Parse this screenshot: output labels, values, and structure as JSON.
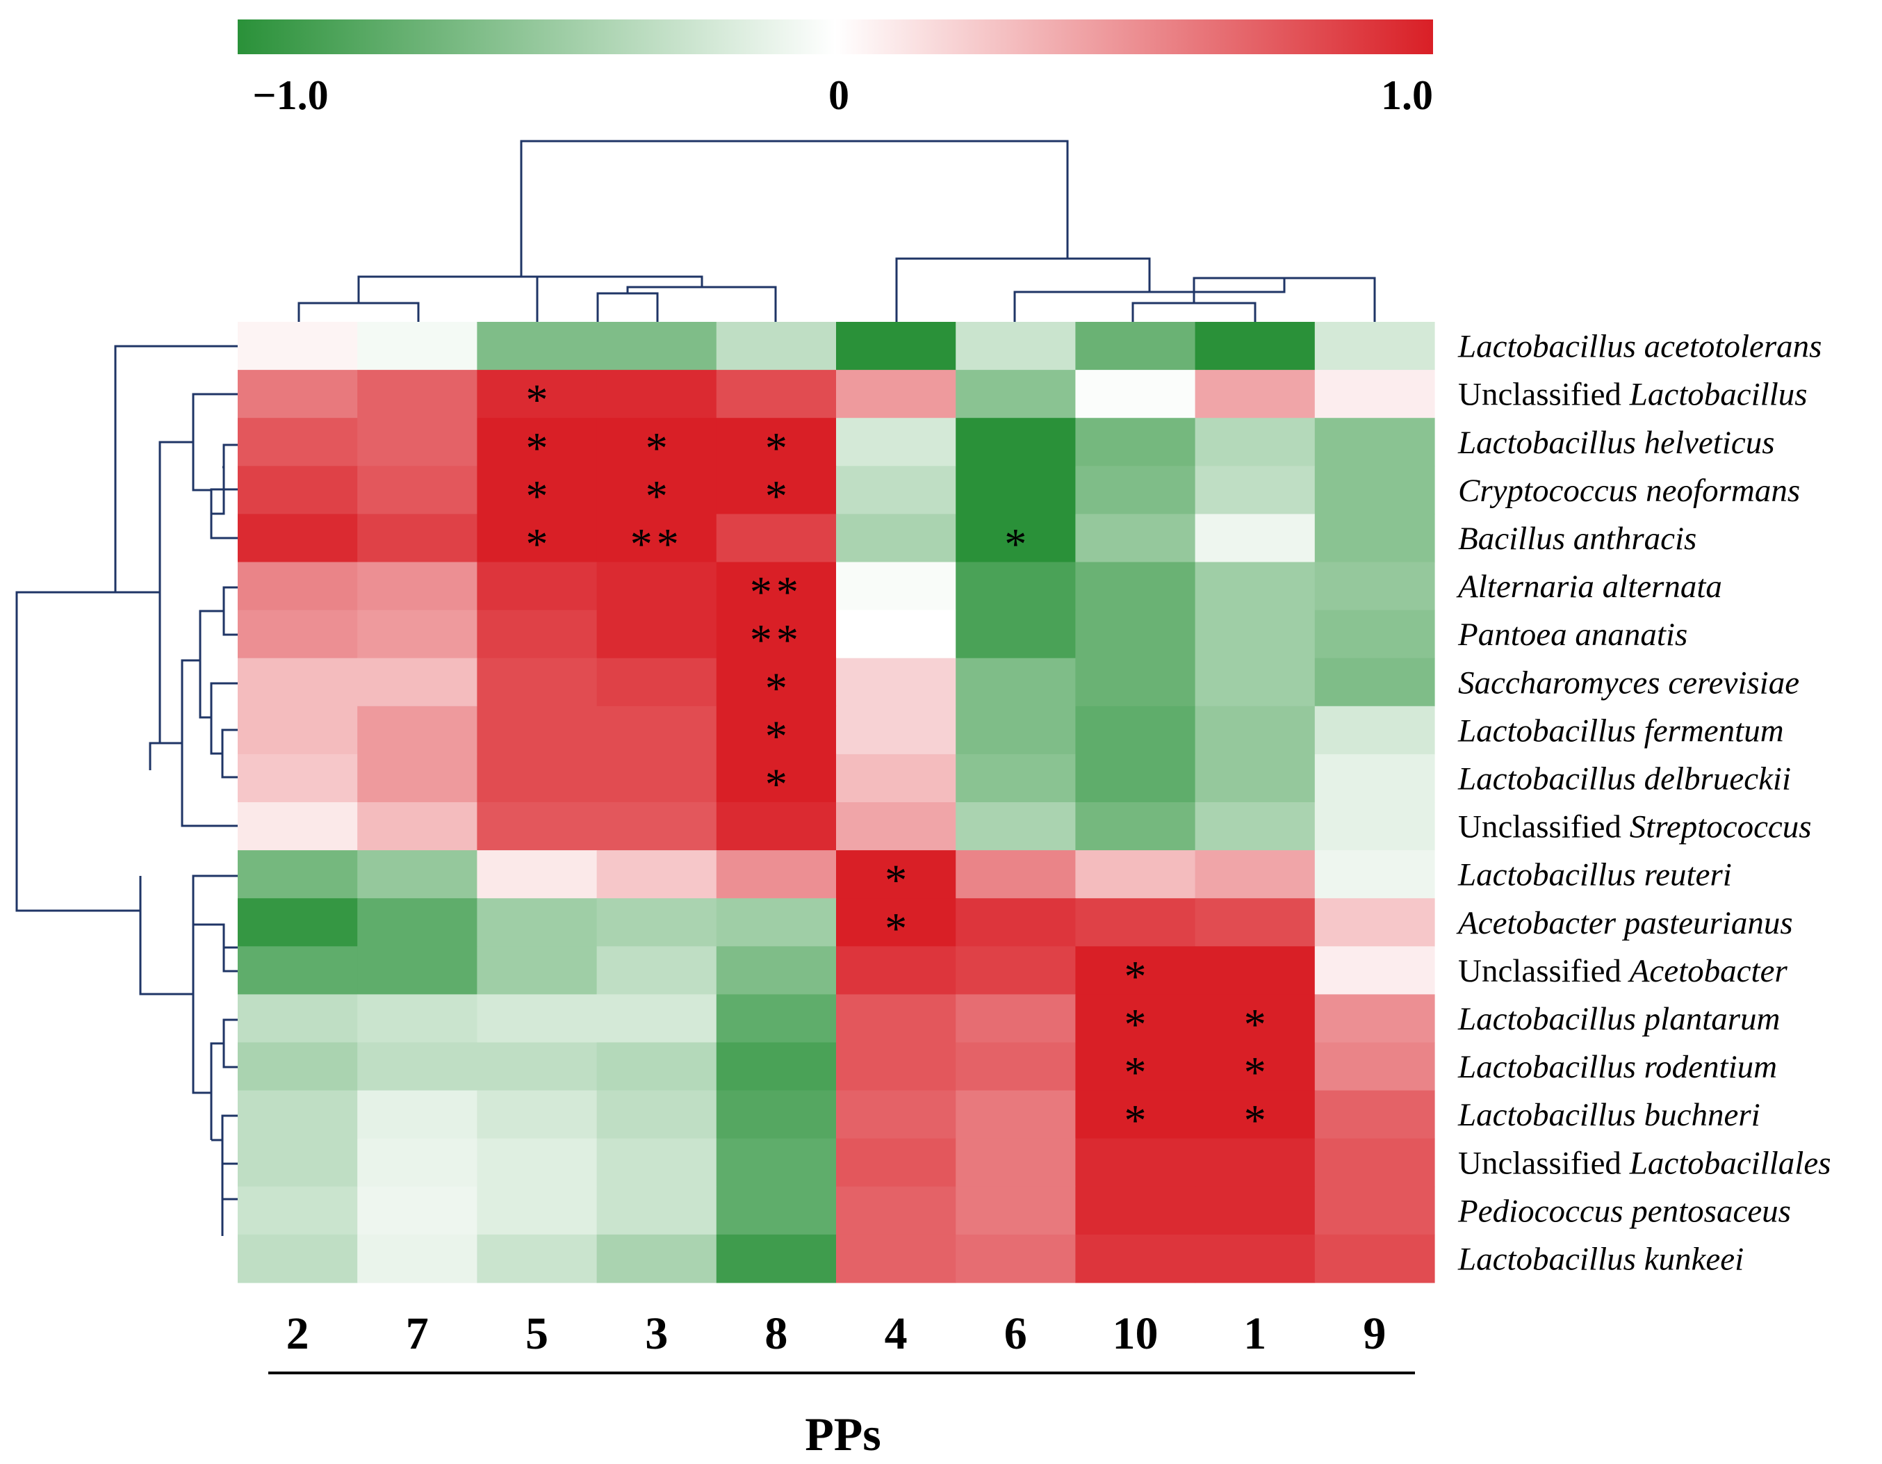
{
  "chart_data": {
    "type": "heatmap",
    "title": "",
    "xlabel": "PPs",
    "ylabel": "",
    "colorbar": {
      "min_label": "−1.0",
      "mid_label": "0",
      "max_label": "1.0",
      "range": [
        -1.0,
        1.0
      ],
      "colors": {
        "low": "#2a9139",
        "mid": "#ffffff",
        "high": "#d91f26"
      }
    },
    "columns": [
      "2",
      "7",
      "5",
      "3",
      "8",
      "4",
      "6",
      "10",
      "1",
      "9"
    ],
    "rows": [
      {
        "prefix": "",
        "name": "Lactobacillus acetotolerans",
        "values": [
          0.05,
          -0.05,
          -0.6,
          -0.6,
          -0.3,
          -1.0,
          -0.25,
          -0.7,
          -1.0,
          -0.2
        ]
      },
      {
        "prefix": "Unclassified ",
        "name": "Lactobacillus",
        "values": [
          0.6,
          0.7,
          0.95,
          0.95,
          0.8,
          0.45,
          -0.55,
          -0.02,
          0.4,
          0.08
        ]
      },
      {
        "prefix": "",
        "name": "Lactobacillus helveticus",
        "values": [
          0.75,
          0.7,
          1.0,
          1.0,
          1.0,
          -0.2,
          -1.0,
          -0.65,
          -0.35,
          -0.55
        ]
      },
      {
        "prefix": "",
        "name": "Cryptococcus neoformans",
        "values": [
          0.85,
          0.75,
          1.0,
          1.0,
          1.0,
          -0.3,
          -1.0,
          -0.6,
          -0.3,
          -0.55
        ]
      },
      {
        "prefix": "",
        "name": "Bacillus anthracis",
        "values": [
          0.95,
          0.85,
          1.0,
          1.0,
          0.85,
          -0.4,
          -1.0,
          -0.5,
          -0.08,
          -0.55
        ]
      },
      {
        "prefix": "",
        "name": "Alternaria alternata",
        "values": [
          0.55,
          0.5,
          0.9,
          0.95,
          1.0,
          -0.03,
          -0.85,
          -0.7,
          -0.45,
          -0.5
        ]
      },
      {
        "prefix": "",
        "name": "Pantoea ananatis",
        "values": [
          0.5,
          0.45,
          0.85,
          0.95,
          1.0,
          0.0,
          -0.85,
          -0.7,
          -0.45,
          -0.55
        ]
      },
      {
        "prefix": "",
        "name": "Saccharomyces cerevisiae",
        "values": [
          0.3,
          0.3,
          0.8,
          0.85,
          1.0,
          0.2,
          -0.6,
          -0.7,
          -0.45,
          -0.6
        ]
      },
      {
        "prefix": "",
        "name": "Lactobacillus fermentum",
        "values": [
          0.3,
          0.45,
          0.8,
          0.8,
          1.0,
          0.2,
          -0.6,
          -0.75,
          -0.5,
          -0.2
        ]
      },
      {
        "prefix": "",
        "name": "Lactobacillus delbrueckii",
        "values": [
          0.25,
          0.45,
          0.8,
          0.8,
          1.0,
          0.3,
          -0.55,
          -0.75,
          -0.5,
          -0.12
        ]
      },
      {
        "prefix": "Unclassified ",
        "name": "Streptococcus",
        "values": [
          0.1,
          0.3,
          0.75,
          0.75,
          0.95,
          0.4,
          -0.4,
          -0.65,
          -0.4,
          -0.12
        ]
      },
      {
        "prefix": "",
        "name": "Lactobacillus reuteri",
        "values": [
          -0.65,
          -0.5,
          0.1,
          0.25,
          0.5,
          1.0,
          0.55,
          0.3,
          0.4,
          -0.08
        ]
      },
      {
        "prefix": "",
        "name": "Acetobacter pasteurianus",
        "values": [
          -0.95,
          -0.75,
          -0.45,
          -0.4,
          -0.45,
          1.0,
          0.9,
          0.85,
          0.8,
          0.25
        ]
      },
      {
        "prefix": "Unclassified ",
        "name": "Acetobacter",
        "values": [
          -0.75,
          -0.75,
          -0.45,
          -0.3,
          -0.6,
          0.9,
          0.85,
          1.0,
          1.0,
          0.08
        ]
      },
      {
        "prefix": "",
        "name": "Lactobacillus plantarum",
        "values": [
          -0.3,
          -0.25,
          -0.2,
          -0.2,
          -0.75,
          0.75,
          0.65,
          1.0,
          1.0,
          0.5
        ]
      },
      {
        "prefix": "",
        "name": "Lactobacillus rodentium",
        "values": [
          -0.4,
          -0.3,
          -0.3,
          -0.35,
          -0.85,
          0.75,
          0.7,
          1.0,
          1.0,
          0.55
        ]
      },
      {
        "prefix": "",
        "name": "Lactobacillus buchneri",
        "values": [
          -0.3,
          -0.12,
          -0.2,
          -0.3,
          -0.8,
          0.7,
          0.6,
          1.0,
          1.0,
          0.7
        ]
      },
      {
        "prefix": "Unclassified ",
        "name": "Lactobacillales",
        "values": [
          -0.3,
          -0.1,
          -0.15,
          -0.25,
          -0.75,
          0.75,
          0.6,
          0.95,
          0.95,
          0.75
        ]
      },
      {
        "prefix": "",
        "name": "Pediococcus pentosaceus",
        "values": [
          -0.25,
          -0.08,
          -0.15,
          -0.25,
          -0.75,
          0.7,
          0.6,
          0.95,
          0.95,
          0.75
        ]
      },
      {
        "prefix": "",
        "name": "Lactobacillus kunkeei",
        "values": [
          -0.3,
          -0.1,
          -0.25,
          -0.4,
          -0.9,
          0.7,
          0.65,
          0.9,
          0.9,
          0.8
        ]
      }
    ],
    "significance": [
      {
        "row": 1,
        "col": 2,
        "mark": "*"
      },
      {
        "row": 2,
        "col": 2,
        "mark": "*"
      },
      {
        "row": 2,
        "col": 3,
        "mark": "*"
      },
      {
        "row": 2,
        "col": 4,
        "mark": "*"
      },
      {
        "row": 3,
        "col": 2,
        "mark": "*"
      },
      {
        "row": 3,
        "col": 3,
        "mark": "*"
      },
      {
        "row": 3,
        "col": 4,
        "mark": "*"
      },
      {
        "row": 4,
        "col": 2,
        "mark": "*"
      },
      {
        "row": 4,
        "col": 3,
        "mark": "**"
      },
      {
        "row": 4,
        "col": 6,
        "mark": "*"
      },
      {
        "row": 5,
        "col": 4,
        "mark": "**"
      },
      {
        "row": 6,
        "col": 4,
        "mark": "**"
      },
      {
        "row": 7,
        "col": 4,
        "mark": "*"
      },
      {
        "row": 8,
        "col": 4,
        "mark": "*"
      },
      {
        "row": 9,
        "col": 4,
        "mark": "*"
      },
      {
        "row": 11,
        "col": 5,
        "mark": "*"
      },
      {
        "row": 12,
        "col": 5,
        "mark": "*"
      },
      {
        "row": 13,
        "col": 7,
        "mark": "*"
      },
      {
        "row": 14,
        "col": 7,
        "mark": "*"
      },
      {
        "row": 14,
        "col": 8,
        "mark": "*"
      },
      {
        "row": 15,
        "col": 7,
        "mark": "*"
      },
      {
        "row": 15,
        "col": 8,
        "mark": "*"
      },
      {
        "row": 16,
        "col": 7,
        "mark": "*"
      },
      {
        "row": 16,
        "col": 8,
        "mark": "*"
      }
    ]
  }
}
